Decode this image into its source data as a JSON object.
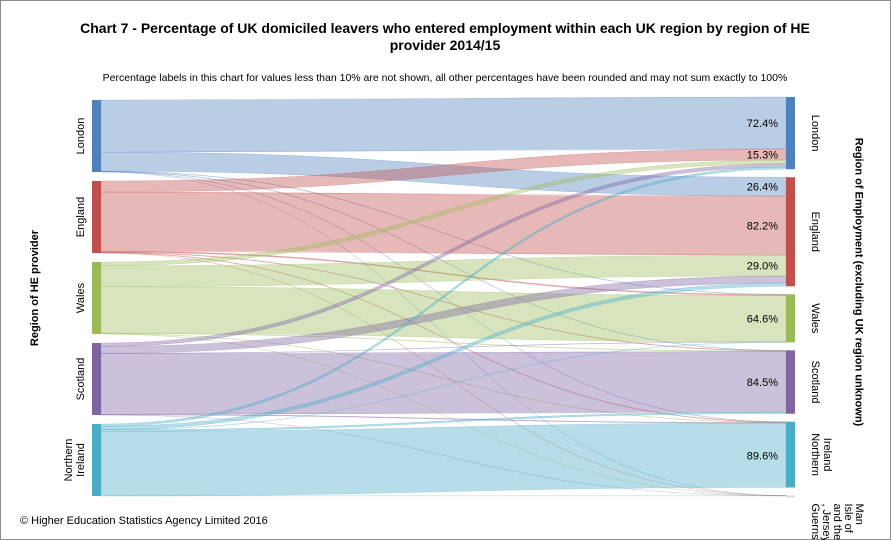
{
  "title": "Chart 7 - Percentage of UK domiciled leavers who entered employment within each UK region by region of HE provider 2014/15",
  "subtitle": "Percentage labels in this chart for values less than 10% are not shown, all other percentages have been rounded and may not sum exactly to 100%",
  "footer": "© Higher Education Statistics Agency Limited 2016",
  "left_axis_label": "Region of HE provider",
  "right_axis_label": "Region of Employment (excluding UK region unknown)",
  "colors": {
    "london": "#4f81bd",
    "england": "#c0504d",
    "wales": "#9bbb59",
    "scotland": "#8064a2",
    "northern_ireland": "#4bacc6",
    "islands": "#d9d9d9"
  },
  "chart_data": {
    "type": "sankey",
    "title": "Chart 7 - Percentage of UK domiciled leavers who entered employment within each UK region by region of HE provider 2014/15",
    "sources": [
      {
        "id": "london",
        "label": "London",
        "color": "#4f81bd"
      },
      {
        "id": "england",
        "label": "England",
        "color": "#c0504d"
      },
      {
        "id": "wales",
        "label": "Wales",
        "color": "#9bbb59"
      },
      {
        "id": "scotland",
        "label": "Scotland",
        "color": "#8064a2"
      },
      {
        "id": "northern_ireland",
        "label": "Northern Ireland",
        "color": "#4bacc6"
      }
    ],
    "targets": [
      {
        "id": "london",
        "label": "London",
        "color": "#4f81bd"
      },
      {
        "id": "england",
        "label": "England",
        "color": "#c0504d"
      },
      {
        "id": "wales",
        "label": "Wales",
        "color": "#9bbb59"
      },
      {
        "id": "scotland",
        "label": "Scotland",
        "color": "#8064a2"
      },
      {
        "id": "northern_ireland",
        "label": "Northern Ireland",
        "color": "#4bacc6"
      },
      {
        "id": "islands",
        "label": "Guernsey , Jersey and the Isle of Man",
        "color": "#d9d9d9"
      }
    ],
    "flows": [
      {
        "source": "london",
        "target": "london",
        "value": 72.4,
        "label": "72.4%"
      },
      {
        "source": "london",
        "target": "england",
        "value": 26.4,
        "label": "26.4%"
      },
      {
        "source": "london",
        "target": "wales",
        "value": 0.4
      },
      {
        "source": "london",
        "target": "scotland",
        "value": 0.4
      },
      {
        "source": "london",
        "target": "northern_ireland",
        "value": 0.3
      },
      {
        "source": "london",
        "target": "islands",
        "value": 0.1
      },
      {
        "source": "england",
        "target": "london",
        "value": 15.3,
        "label": "15.3%"
      },
      {
        "source": "england",
        "target": "england",
        "value": 82.2,
        "label": "82.2%"
      },
      {
        "source": "england",
        "target": "wales",
        "value": 1.3
      },
      {
        "source": "england",
        "target": "scotland",
        "value": 0.6
      },
      {
        "source": "england",
        "target": "northern_ireland",
        "value": 0.5
      },
      {
        "source": "england",
        "target": "islands",
        "value": 0.1
      },
      {
        "source": "wales",
        "target": "london",
        "value": 5.2
      },
      {
        "source": "wales",
        "target": "england",
        "value": 29.0,
        "label": "29.0%"
      },
      {
        "source": "wales",
        "target": "wales",
        "value": 64.6,
        "label": "64.6%"
      },
      {
        "source": "wales",
        "target": "scotland",
        "value": 0.6
      },
      {
        "source": "wales",
        "target": "northern_ireland",
        "value": 0.4
      },
      {
        "source": "wales",
        "target": "islands",
        "value": 0.2
      },
      {
        "source": "scotland",
        "target": "london",
        "value": 4.6
      },
      {
        "source": "scotland",
        "target": "england",
        "value": 9.7
      },
      {
        "source": "scotland",
        "target": "wales",
        "value": 0.3
      },
      {
        "source": "scotland",
        "target": "scotland",
        "value": 84.5,
        "label": "84.5%"
      },
      {
        "source": "scotland",
        "target": "northern_ireland",
        "value": 0.8
      },
      {
        "source": "scotland",
        "target": "islands",
        "value": 0.1
      },
      {
        "source": "northern_ireland",
        "target": "london",
        "value": 3.1
      },
      {
        "source": "northern_ireland",
        "target": "england",
        "value": 4.6
      },
      {
        "source": "northern_ireland",
        "target": "wales",
        "value": 0.3
      },
      {
        "source": "northern_ireland",
        "target": "scotland",
        "value": 2.2
      },
      {
        "source": "northern_ireland",
        "target": "northern_ireland",
        "value": 89.6,
        "label": "89.6%"
      },
      {
        "source": "northern_ireland",
        "target": "islands",
        "value": 0.2
      }
    ]
  }
}
